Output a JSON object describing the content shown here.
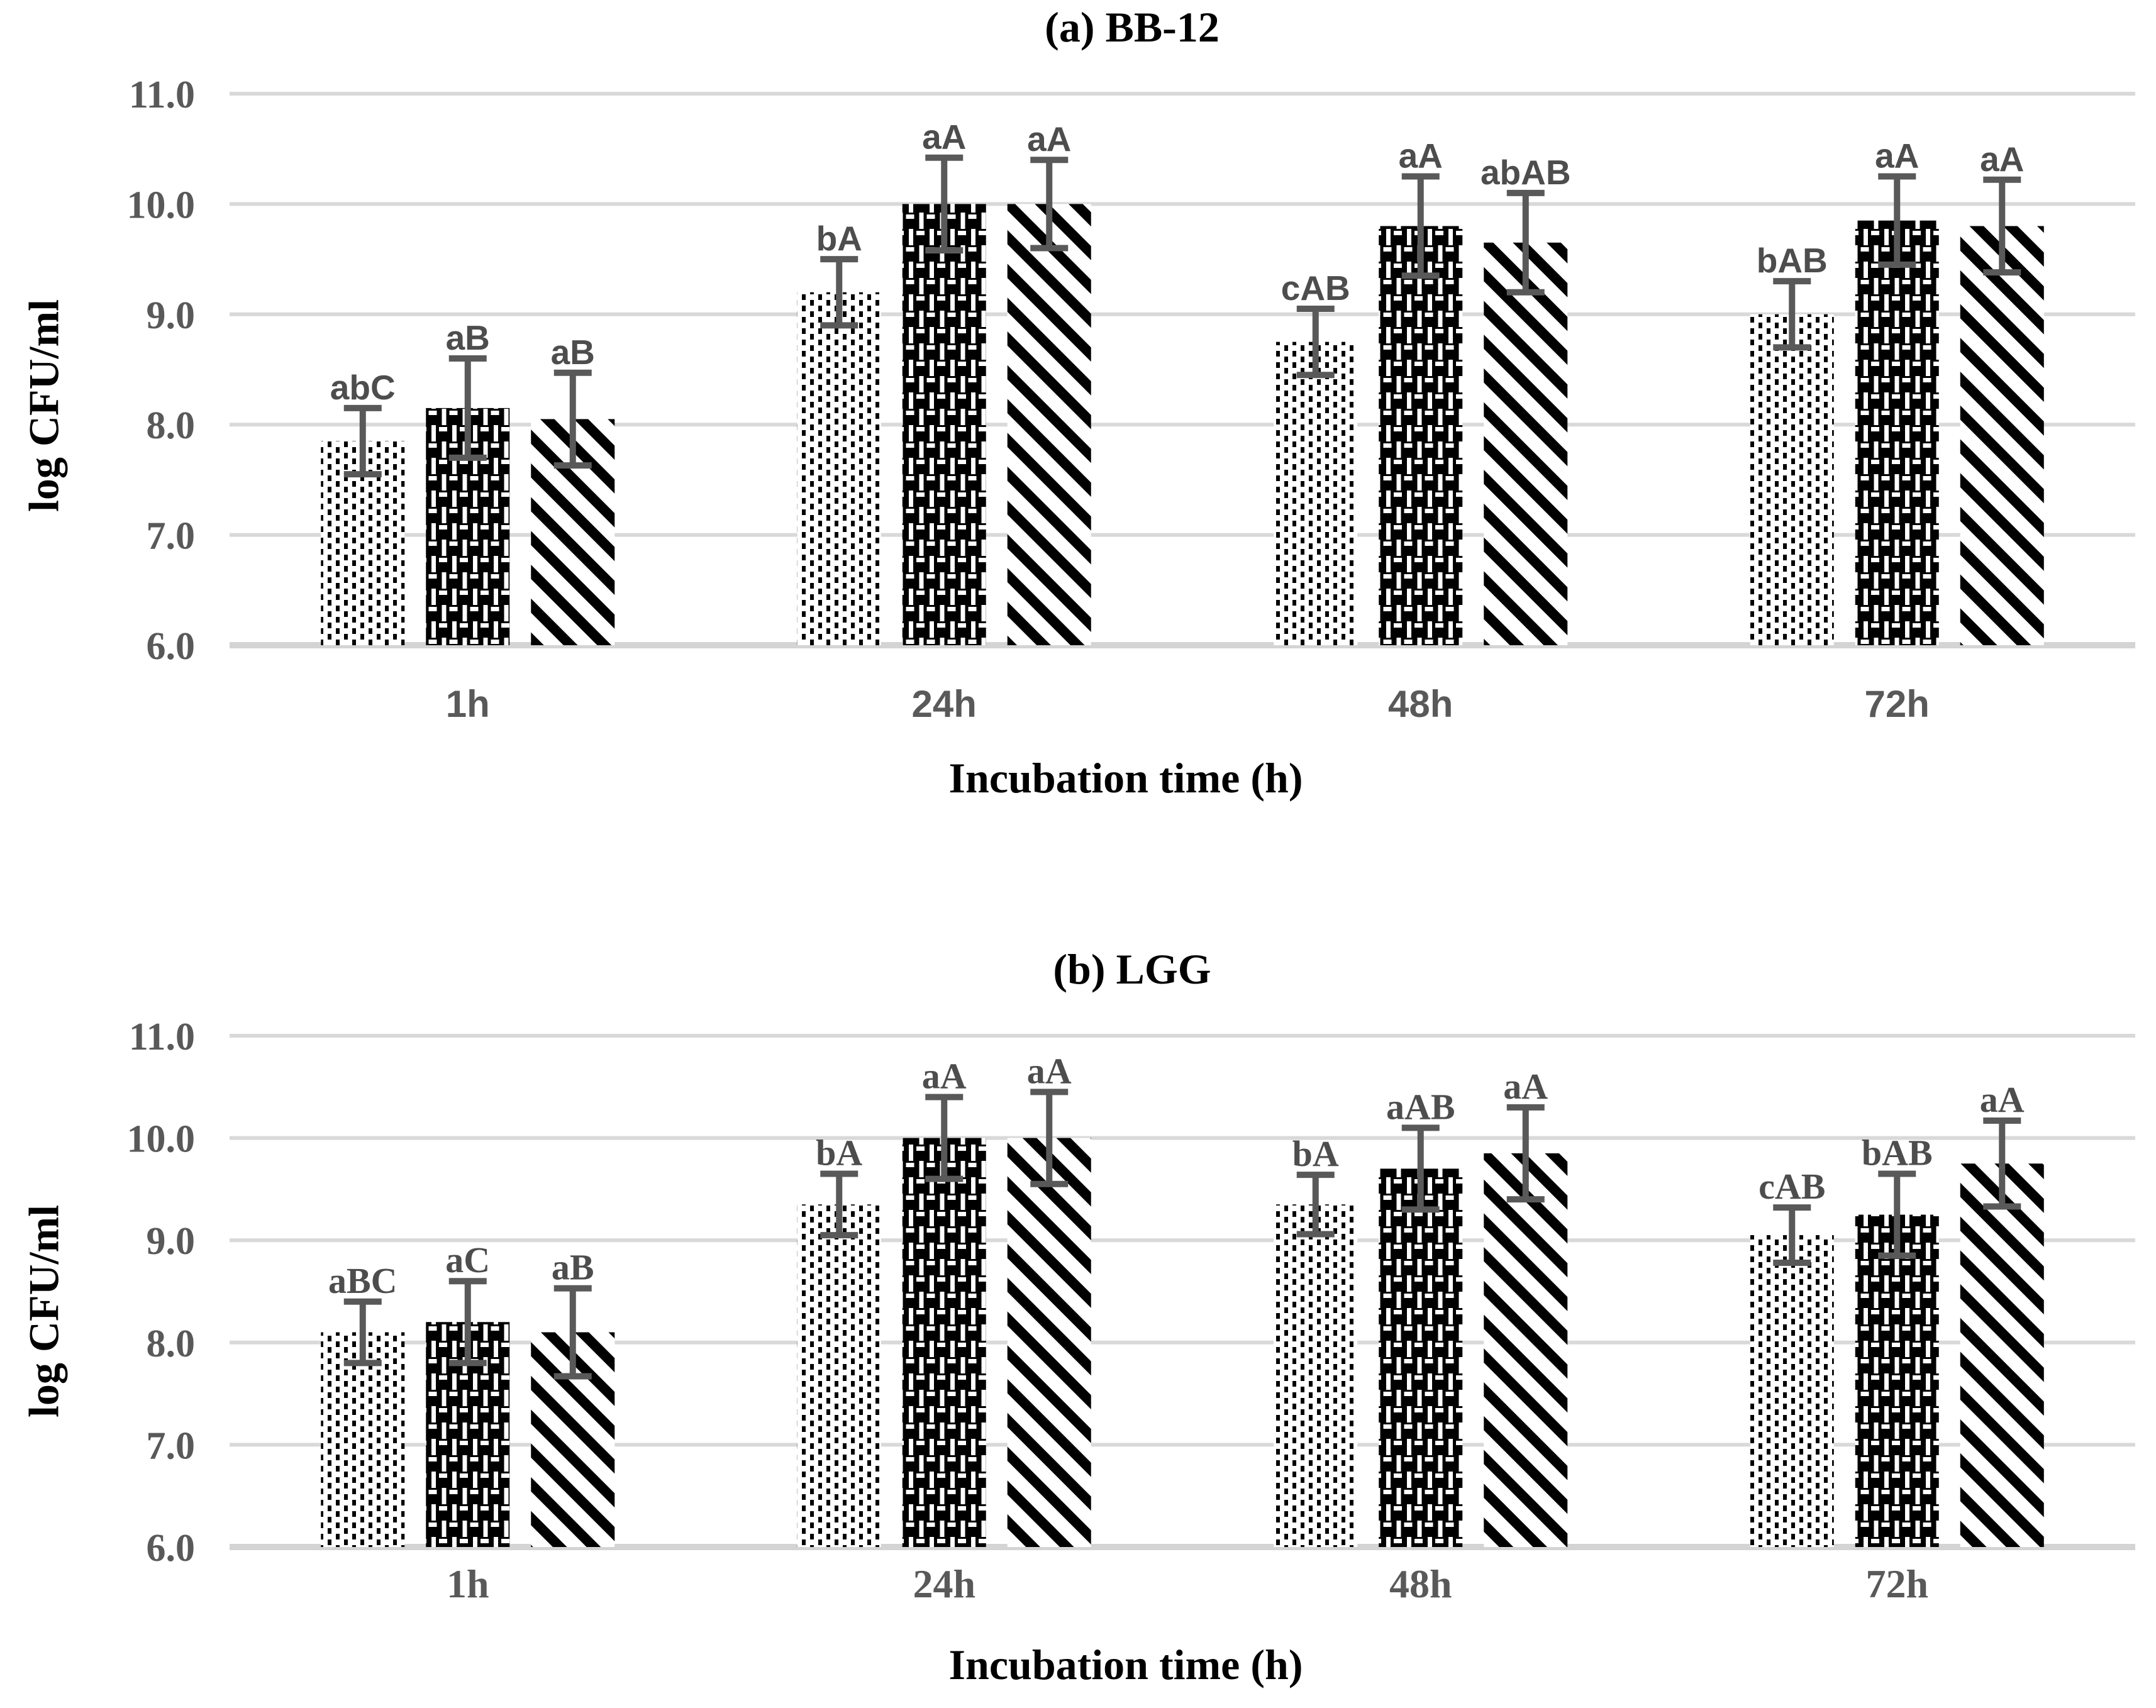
{
  "figure": {
    "background": "#ffffff",
    "grid_color": "#d9d9d9",
    "label_color": "#595959",
    "text_color": "#000000"
  },
  "chart_data": [
    {
      "id": "a",
      "type": "bar",
      "title": "(a) BB-12",
      "xlabel": "Incubation time (h)",
      "ylabel": "log CFU/ml",
      "ylim": [
        6.0,
        11.0
      ],
      "yticks": [
        "11.0",
        "10.0",
        "9.0",
        "8.0",
        "7.0",
        "6.0"
      ],
      "categories": [
        "1h",
        "24h",
        "48h",
        "72h"
      ],
      "grid": true,
      "legend": "none",
      "series": [
        {
          "name": "dotted",
          "pattern": "dots",
          "values": [
            7.85,
            9.2,
            8.75,
            9.0
          ],
          "errors": [
            0.3,
            0.3,
            0.3,
            0.3
          ],
          "labels": [
            "abC",
            "bA",
            "cAB",
            "bAB"
          ]
        },
        {
          "name": "checkered",
          "pattern": "checker",
          "values": [
            8.15,
            10.0,
            9.8,
            9.85
          ],
          "errors": [
            0.45,
            0.42,
            0.45,
            0.4
          ],
          "labels": [
            "aB",
            "aA",
            "aA",
            "aA"
          ]
        },
        {
          "name": "diagonal-striped",
          "pattern": "diag",
          "values": [
            8.05,
            10.0,
            9.65,
            9.8
          ],
          "errors": [
            0.42,
            0.4,
            0.45,
            0.42
          ],
          "labels": [
            "aB",
            "aA",
            "abAB",
            "aA"
          ]
        }
      ]
    },
    {
      "id": "b",
      "type": "bar",
      "title": "(b) LGG",
      "xlabel": "Incubation time (h)",
      "ylabel": "log CFU/ml",
      "ylim": [
        6.0,
        11.0
      ],
      "yticks": [
        "11.0",
        "10.0",
        "9.0",
        "8.0",
        "7.0",
        "6.0"
      ],
      "categories": [
        "1h",
        "24h",
        "48h",
        "72h"
      ],
      "grid": true,
      "legend": "none",
      "series": [
        {
          "name": "dotted",
          "pattern": "dots",
          "values": [
            8.1,
            9.35,
            9.35,
            9.05
          ],
          "errors": [
            0.3,
            0.3,
            0.29,
            0.27
          ],
          "labels": [
            "aBC",
            "bA",
            "bA",
            "cAB"
          ]
        },
        {
          "name": "checkered",
          "pattern": "checker",
          "values": [
            8.2,
            10.0,
            9.7,
            9.25
          ],
          "errors": [
            0.4,
            0.4,
            0.4,
            0.4
          ],
          "labels": [
            "aC",
            "aA",
            "aAB",
            "bAB"
          ]
        },
        {
          "name": "diagonal-striped",
          "pattern": "diag",
          "values": [
            8.1,
            10.0,
            9.85,
            9.75
          ],
          "errors": [
            0.43,
            0.45,
            0.45,
            0.42
          ],
          "labels": [
            "aB",
            "aA",
            "aA",
            "aA"
          ]
        }
      ]
    }
  ]
}
